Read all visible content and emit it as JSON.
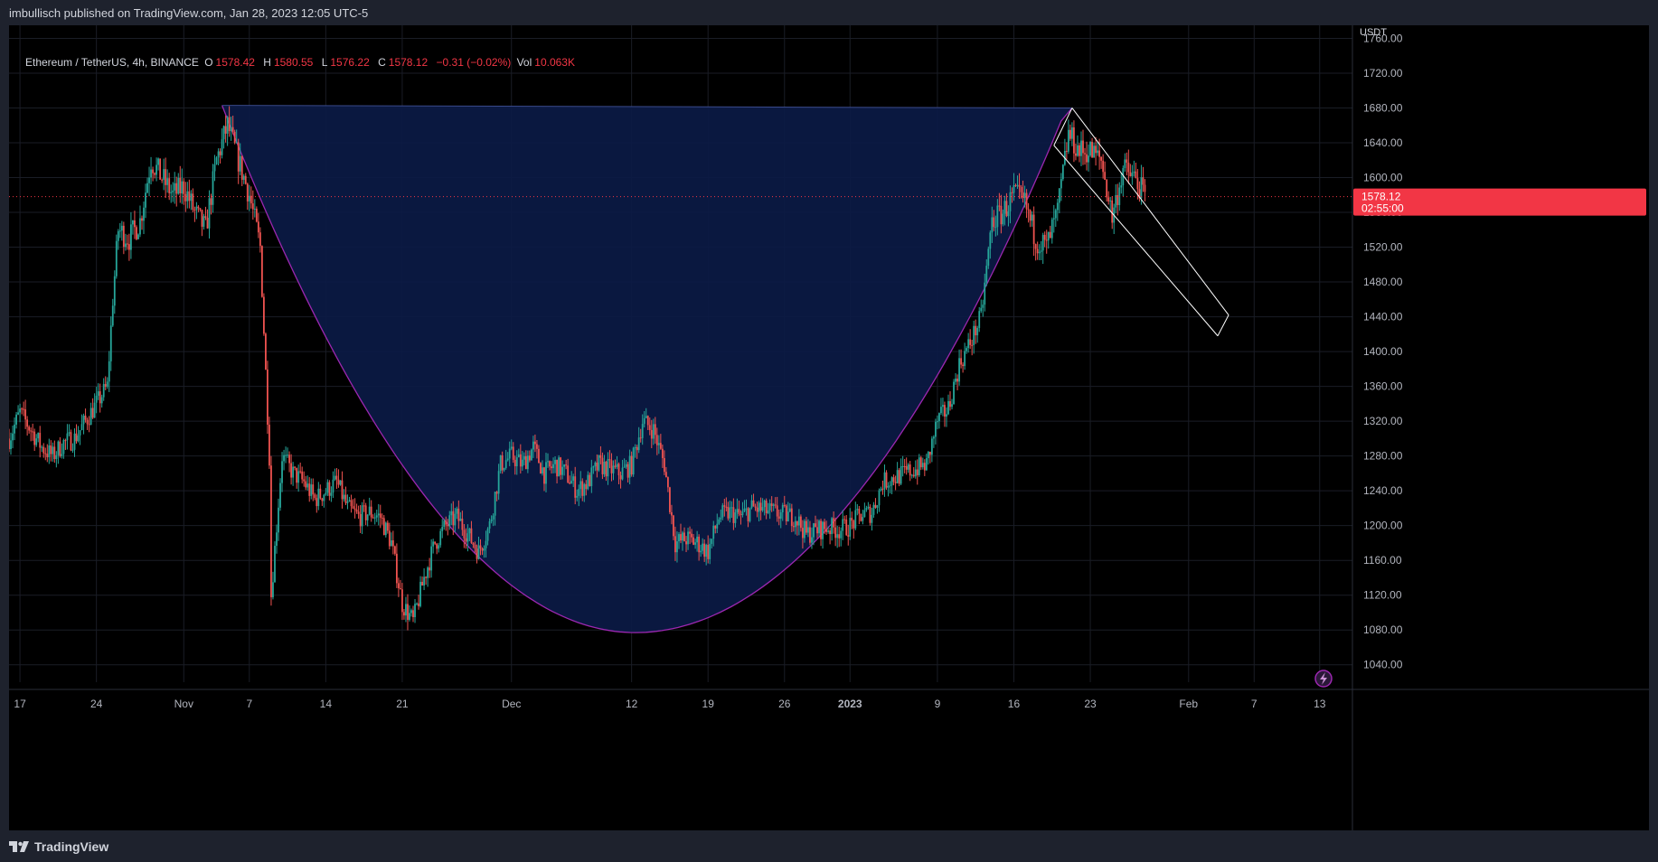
{
  "header": {
    "published_text": "imbullisch published on TradingView.com, Jan 28, 2023 12:05 UTC-5"
  },
  "legend": {
    "symbol": "Ethereum / TetherUS, 4h, BINANCE",
    "o_label": "O",
    "o_value": "1578.42",
    "h_label": "H",
    "h_value": "1580.55",
    "l_label": "L",
    "l_value": "1576.22",
    "c_label": "C",
    "c_value": "1578.12",
    "change": "−0.31 (−0.02%)",
    "vol_label": "Vol",
    "vol_value": "10.063K"
  },
  "footer": {
    "brand": "TradingView"
  },
  "colors": {
    "background": "#000000",
    "frame": "#1e222d",
    "up": "#26a69a",
    "down": "#ef5350",
    "cup_fill": "#0b1a45",
    "cup_stroke": "#9c27b0",
    "channel": "#ffffff",
    "price_tag": "#f23645"
  },
  "chart_data": {
    "type": "candlestick",
    "pair": "ETH/USDT",
    "timeframe": "4h",
    "y_axis_unit": "USDT",
    "ylim": [
      1020,
      1775
    ],
    "y_ticks": [
      1040,
      1080,
      1120,
      1160,
      1200,
      1240,
      1280,
      1320,
      1360,
      1400,
      1440,
      1480,
      1520,
      1560,
      1600,
      1640,
      1680,
      1720,
      1760
    ],
    "y_tick_labels": [
      "1040.00",
      "1080.00",
      "1120.00",
      "1160.00",
      "1200.00",
      "1240.00",
      "1280.00",
      "1320.00",
      "1360.00",
      "1400.00",
      "1440.00",
      "1480.00",
      "1520.00",
      "1560.00",
      "1600.00",
      "1640.00",
      "1680.00",
      "1720.00",
      "1760.00"
    ],
    "x_range": [
      "2022-10-16",
      "2023-02-16"
    ],
    "x_ticks": [
      {
        "date": "2022-10-17",
        "label": "17"
      },
      {
        "date": "2022-10-24",
        "label": "24"
      },
      {
        "date": "2022-11-01",
        "label": "Nov"
      },
      {
        "date": "2022-11-07",
        "label": "7"
      },
      {
        "date": "2022-11-14",
        "label": "14"
      },
      {
        "date": "2022-11-21",
        "label": "21"
      },
      {
        "date": "2022-12-01",
        "label": "Dec"
      },
      {
        "date": "2022-12-12",
        "label": "12"
      },
      {
        "date": "2022-12-19",
        "label": "19"
      },
      {
        "date": "2022-12-26",
        "label": "26"
      },
      {
        "date": "2023-01-01",
        "label": "2023",
        "bold": true
      },
      {
        "date": "2023-01-09",
        "label": "9"
      },
      {
        "date": "2023-01-16",
        "label": "16"
      },
      {
        "date": "2023-01-23",
        "label": "23"
      },
      {
        "date": "2023-02-01",
        "label": "Feb"
      },
      {
        "date": "2023-02-07",
        "label": "7"
      },
      {
        "date": "2023-02-13",
        "label": "13"
      }
    ],
    "close_path": [
      [
        "2022-10-16",
        1300
      ],
      [
        "2022-10-17",
        1330
      ],
      [
        "2022-10-18",
        1310
      ],
      [
        "2022-10-19",
        1290
      ],
      [
        "2022-10-20",
        1280
      ],
      [
        "2022-10-21",
        1295
      ],
      [
        "2022-10-22",
        1300
      ],
      [
        "2022-10-23",
        1320
      ],
      [
        "2022-10-24",
        1340
      ],
      [
        "2022-10-25",
        1360
      ],
      [
        "2022-10-25T12:00",
        1460
      ],
      [
        "2022-10-26",
        1540
      ],
      [
        "2022-10-27",
        1530
      ],
      [
        "2022-10-28",
        1550
      ],
      [
        "2022-10-29",
        1620
      ],
      [
        "2022-10-30",
        1600
      ],
      [
        "2022-10-31",
        1580
      ],
      [
        "2022-11-01",
        1590
      ],
      [
        "2022-11-02",
        1560
      ],
      [
        "2022-11-03",
        1540
      ],
      [
        "2022-11-04",
        1620
      ],
      [
        "2022-11-05",
        1660
      ],
      [
        "2022-11-06",
        1620
      ],
      [
        "2022-11-07",
        1580
      ],
      [
        "2022-11-08",
        1520
      ],
      [
        "2022-11-08T20:00",
        1280
      ],
      [
        "2022-11-09",
        1120
      ],
      [
        "2022-11-10",
        1280
      ],
      [
        "2022-11-11",
        1260
      ],
      [
        "2022-11-12",
        1250
      ],
      [
        "2022-11-13",
        1230
      ],
      [
        "2022-11-14",
        1240
      ],
      [
        "2022-11-15",
        1250
      ],
      [
        "2022-11-16",
        1220
      ],
      [
        "2022-11-17",
        1210
      ],
      [
        "2022-11-18",
        1215
      ],
      [
        "2022-11-19",
        1210
      ],
      [
        "2022-11-20",
        1180
      ],
      [
        "2022-11-21",
        1110
      ],
      [
        "2022-11-22",
        1090
      ],
      [
        "2022-11-23",
        1140
      ],
      [
        "2022-11-24",
        1180
      ],
      [
        "2022-11-25",
        1200
      ],
      [
        "2022-11-26",
        1210
      ],
      [
        "2022-11-27",
        1190
      ],
      [
        "2022-11-28",
        1170
      ],
      [
        "2022-11-29",
        1200
      ],
      [
        "2022-11-30",
        1270
      ],
      [
        "2022-12-01",
        1280
      ],
      [
        "2022-12-02",
        1270
      ],
      [
        "2022-12-03",
        1290
      ],
      [
        "2022-12-04",
        1260
      ],
      [
        "2022-12-05",
        1270
      ],
      [
        "2022-12-06",
        1260
      ],
      [
        "2022-12-07",
        1240
      ],
      [
        "2022-12-08",
        1250
      ],
      [
        "2022-12-09",
        1270
      ],
      [
        "2022-12-10",
        1265
      ],
      [
        "2022-12-11",
        1260
      ],
      [
        "2022-12-12",
        1270
      ],
      [
        "2022-12-13",
        1320
      ],
      [
        "2022-12-14",
        1310
      ],
      [
        "2022-12-15",
        1270
      ],
      [
        "2022-12-16",
        1180
      ],
      [
        "2022-12-17",
        1185
      ],
      [
        "2022-12-18",
        1180
      ],
      [
        "2022-12-19",
        1170
      ],
      [
        "2022-12-20",
        1210
      ],
      [
        "2022-12-21",
        1215
      ],
      [
        "2022-12-22",
        1210
      ],
      [
        "2022-12-23",
        1220
      ],
      [
        "2022-12-24",
        1218
      ],
      [
        "2022-12-25",
        1215
      ],
      [
        "2022-12-26",
        1212
      ],
      [
        "2022-12-27",
        1210
      ],
      [
        "2022-12-28",
        1190
      ],
      [
        "2022-12-29",
        1195
      ],
      [
        "2022-12-30",
        1198
      ],
      [
        "2022-12-31",
        1195
      ],
      [
        "2023-01-01",
        1200
      ],
      [
        "2023-01-02",
        1212
      ],
      [
        "2023-01-03",
        1215
      ],
      [
        "2023-01-04",
        1250
      ],
      [
        "2023-01-05",
        1255
      ],
      [
        "2023-01-06",
        1260
      ],
      [
        "2023-01-07",
        1265
      ],
      [
        "2023-01-08",
        1270
      ],
      [
        "2023-01-09",
        1320
      ],
      [
        "2023-01-10",
        1335
      ],
      [
        "2023-01-11",
        1385
      ],
      [
        "2023-01-12",
        1410
      ],
      [
        "2023-01-13",
        1440
      ],
      [
        "2023-01-14",
        1550
      ],
      [
        "2023-01-15",
        1560
      ],
      [
        "2023-01-16",
        1580
      ],
      [
        "2023-01-17",
        1570
      ],
      [
        "2023-01-18",
        1530
      ],
      [
        "2023-01-19",
        1520
      ],
      [
        "2023-01-20",
        1560
      ],
      [
        "2023-01-21",
        1650
      ],
      [
        "2023-01-22",
        1630
      ],
      [
        "2023-01-23",
        1630
      ],
      [
        "2023-01-24",
        1620
      ],
      [
        "2023-01-25",
        1555
      ],
      [
        "2023-01-26",
        1610
      ],
      [
        "2023-01-27",
        1600
      ],
      [
        "2023-01-28",
        1578
      ]
    ],
    "last_price": {
      "value": 1578.12,
      "label": "1578.12",
      "countdown": "02:55:00"
    },
    "drawings": {
      "cup_pattern": {
        "rim_left": [
          "2022-11-04T12:00",
          1683
        ],
        "rim_right": [
          "2023-01-21T08:00",
          1680
        ],
        "bottom": [
          "2022-12-12T08:00",
          1077
        ],
        "right_arm_top": [
          "2023-01-20T08:00",
          1665
        ]
      },
      "descending_channel": {
        "upper_start": [
          "2023-01-21T08:00",
          1680
        ],
        "upper_end": [
          "2023-02-04T16:00",
          1442
        ],
        "lower_start": [
          "2023-01-19T16:00",
          1637
        ],
        "lower_end": [
          "2023-02-03T16:00",
          1418
        ]
      }
    },
    "event_icons": [
      "flash-icon",
      "us-flag-icon",
      "us-flag-icon"
    ]
  }
}
